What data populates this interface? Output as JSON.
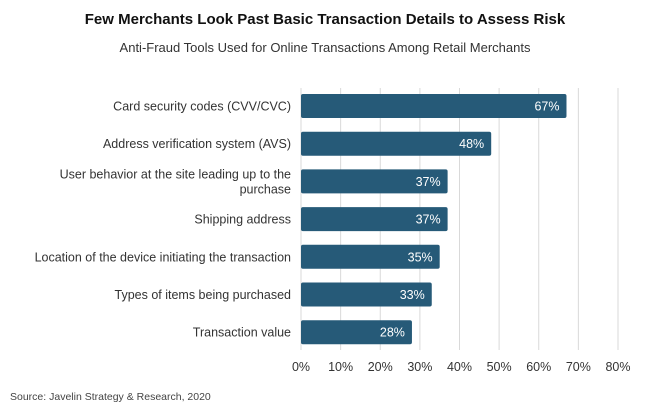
{
  "title": "Few Merchants Look Past Basic Transaction Details to Assess Risk",
  "subtitle": "Anti-Fraud Tools Used for Online Transactions Among Retail Merchants",
  "source": "Source: Javelin Strategy & Research, 2020",
  "colors": {
    "bar": "#265a78",
    "grid": "#d9d9d9",
    "label": "#ffffff"
  },
  "chart_data": {
    "type": "bar",
    "orientation": "horizontal",
    "categories": [
      [
        "Card security codes (CVV/CVC)"
      ],
      [
        "Address verification system (AVS)"
      ],
      [
        "User behavior at the site leading up to the",
        "purchase"
      ],
      [
        "Shipping address"
      ],
      [
        "Location of the device initiating the transaction"
      ],
      [
        "Types of items being purchased"
      ],
      [
        "Transaction value"
      ]
    ],
    "values": [
      67,
      48,
      37,
      37,
      35,
      33,
      28
    ],
    "data_labels": [
      "67%",
      "48%",
      "37%",
      "37%",
      "35%",
      "33%",
      "28%"
    ],
    "xlim": [
      0,
      80
    ],
    "xticks": [
      0,
      10,
      20,
      30,
      40,
      50,
      60,
      70,
      80
    ],
    "xtick_labels": [
      "0%",
      "10%",
      "20%",
      "30%",
      "40%",
      "50%",
      "60%",
      "70%",
      "80%"
    ],
    "grid": true,
    "legend": "none"
  }
}
